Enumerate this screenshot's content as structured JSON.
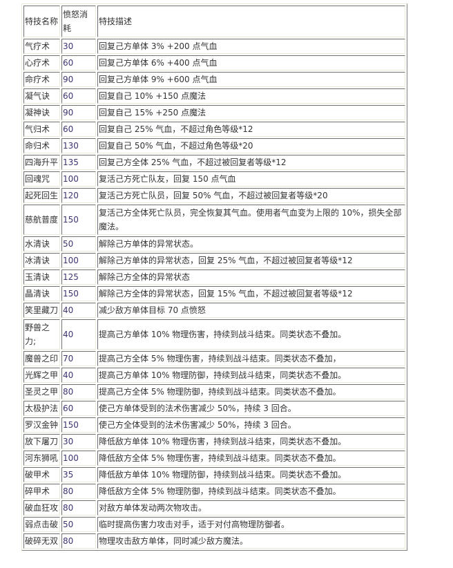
{
  "table": {
    "headers": [
      "特技名称",
      "愤怒消耗",
      "特技描述"
    ],
    "rows": [
      {
        "name": "气疗术",
        "cost": "30",
        "desc": "回复己方单体 3% +200 点气血"
      },
      {
        "name": "心疗术",
        "cost": "60",
        "desc": "回复己方单体 6% +400 点气血"
      },
      {
        "name": "命疗术",
        "cost": "90",
        "desc": "回复己方单体 9% +600 点气血"
      },
      {
        "name": "凝气诀",
        "cost": "60",
        "desc": "回复自己 10% +150 点魔法"
      },
      {
        "name": "凝神诀",
        "cost": "90",
        "desc": "回复自己 15% +250 点魔法"
      },
      {
        "name": "气归术",
        "cost": "60",
        "desc": "回复自己 25% 气血，不超过角色等级*12"
      },
      {
        "name": "命归术",
        "cost": "130",
        "desc": "回复自己 50% 气血，不超过角色等级*20"
      },
      {
        "name": "四海升平",
        "cost": "135",
        "desc": "回复己方全体 25% 气血，不超过被回复者等级*12"
      },
      {
        "name": "回魂咒",
        "cost": "100",
        "desc": "复活己方死亡队友，回复 150 点气血"
      },
      {
        "name": "起死回生",
        "cost": "120",
        "desc": "复活己方死亡队员，回复 50% 气血，不超过被回复者等级*20"
      },
      {
        "name": "慈航普度",
        "cost": "150",
        "desc": "复活己方全体死亡队员，完全恢复其气血。使用者气血变为上限的 10%，损失全部魔法。"
      },
      {
        "name": "水清诀",
        "cost": "50",
        "desc": "解除己方单体的异常状态。"
      },
      {
        "name": "冰清诀",
        "cost": "100",
        "desc": "解除己方单体的异常状态，回复 25% 气血，不超过被回复者等级*12"
      },
      {
        "name": "玉清诀",
        "cost": "125",
        "desc": "解除己方全体的异常状态"
      },
      {
        "name": "晶清诀",
        "cost": "150",
        "desc": "解除己方全体的异常状态，回复 15% 气血，不超过被回复者等级*12"
      },
      {
        "name": "笑里藏刀",
        "cost": "40",
        "desc": "减少敌方单体目标 70 点愤怒"
      },
      {
        "name": "野兽之力;",
        "cost": "40",
        "desc": "提高己方单体 10% 物理伤害，持续到战斗结束。同类状态不叠加。"
      },
      {
        "name": "魔兽之印",
        "cost": "70",
        "desc": "提高己方全体 5% 物理伤害，持续到战斗结束。同类状态不叠加，"
      },
      {
        "name": "光辉之甲",
        "cost": "40",
        "desc": "提高己方单体 10% 物理防御，持续到战斗结束，同类状态不叠加。"
      },
      {
        "name": "圣灵之甲",
        "cost": "80",
        "desc": "提高己方全体 5% 物理防御，持续到战斗结束。同类状态不叠加。"
      },
      {
        "name": "太极护法",
        "cost": "60",
        "desc": "使己方单体受到的法术伤害减少 50%，持续 3 回合。"
      },
      {
        "name": "罗汉金钟",
        "cost": "150",
        "desc": "使己方全体受到的法术伤害减少 50%，持续 3 回合。"
      },
      {
        "name": "放下屠刀",
        "cost": "30",
        "desc": "降低敌方单体 10% 物理伤害，持续到战斗结束，同类状态不叠加。"
      },
      {
        "name": "河东狮吼",
        "cost": "100",
        "desc": "降低敌方全体 5% 物理伤害，持续到战斗结束。同类状态不叠加。"
      },
      {
        "name": "破甲术",
        "cost": "35",
        "desc": "降低敌方单体 10% 物理防御，持续到战斗结束。同类状态不叠加。"
      },
      {
        "name": "碎甲术",
        "cost": "80",
        "desc": "降低敌方全体 5% 物理防御，持续到战斗结束。同类状态不叠加。"
      },
      {
        "name": "破血狂攻",
        "cost": "80",
        "desc": "对敌方单体发动两次物攻击。"
      },
      {
        "name": "弱点击破",
        "cost": "50",
        "desc": "临时提高伤害力攻击对手，适于对付高物理防御者。"
      },
      {
        "name": "破碎无双",
        "cost": "80",
        "desc": "物理攻击敌方单体，同时减少敌方魔法。"
      }
    ]
  }
}
